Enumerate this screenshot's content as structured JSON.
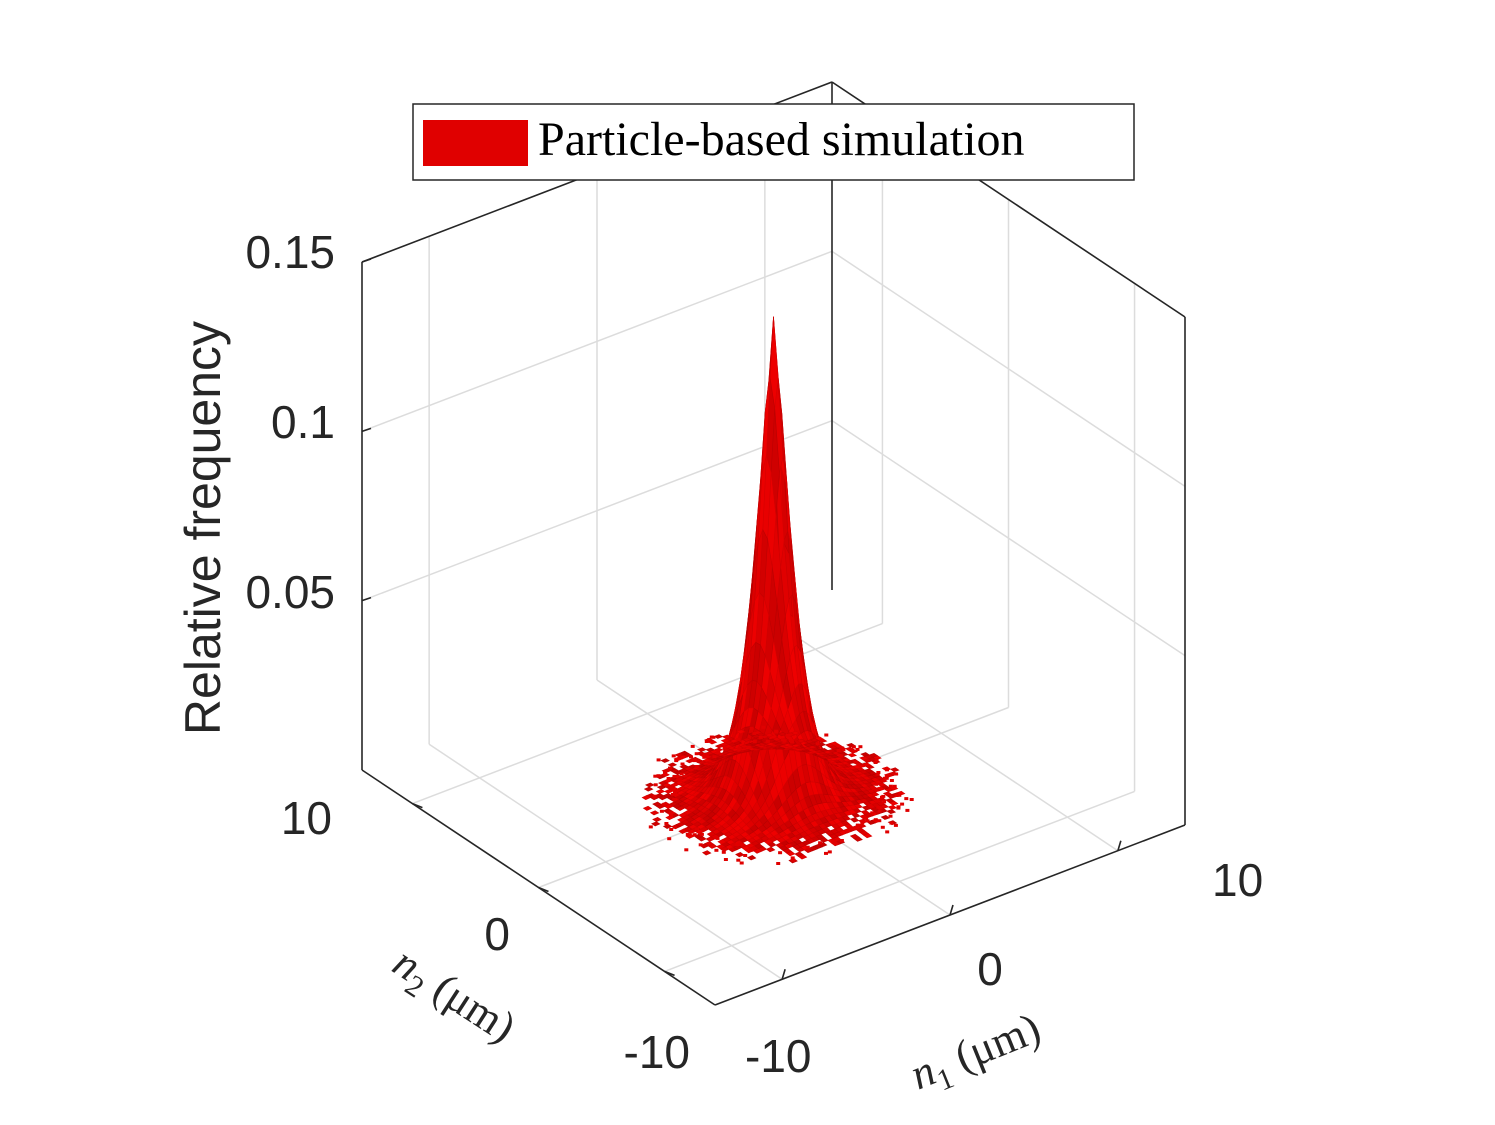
{
  "chart_data": {
    "type": "surface",
    "legend": [
      "Particle-based simulation"
    ],
    "legend_position": "top-center",
    "grid": true,
    "zlabel": "Relative frequency",
    "xlabel": {
      "symbol": "n",
      "sub": "1",
      "unit": " (μm)"
    },
    "ylabel": {
      "symbol": "n",
      "sub": "2",
      "unit": " (μm)"
    },
    "x_ticks": [
      "-10",
      "0",
      "10"
    ],
    "y_ticks": [
      "-10",
      "0",
      "10"
    ],
    "z_ticks": [
      "0.05",
      "0.1",
      "0.15"
    ],
    "xlim": [
      -14,
      14
    ],
    "ylim": [
      -14,
      14
    ],
    "zlim": [
      0,
      0.15
    ],
    "surface": {
      "center": [
        0,
        0
      ],
      "peak": 0.14,
      "core_width": 1.2,
      "base_level": 0.002,
      "base_radius": 5.5,
      "color": "#e00000"
    }
  }
}
